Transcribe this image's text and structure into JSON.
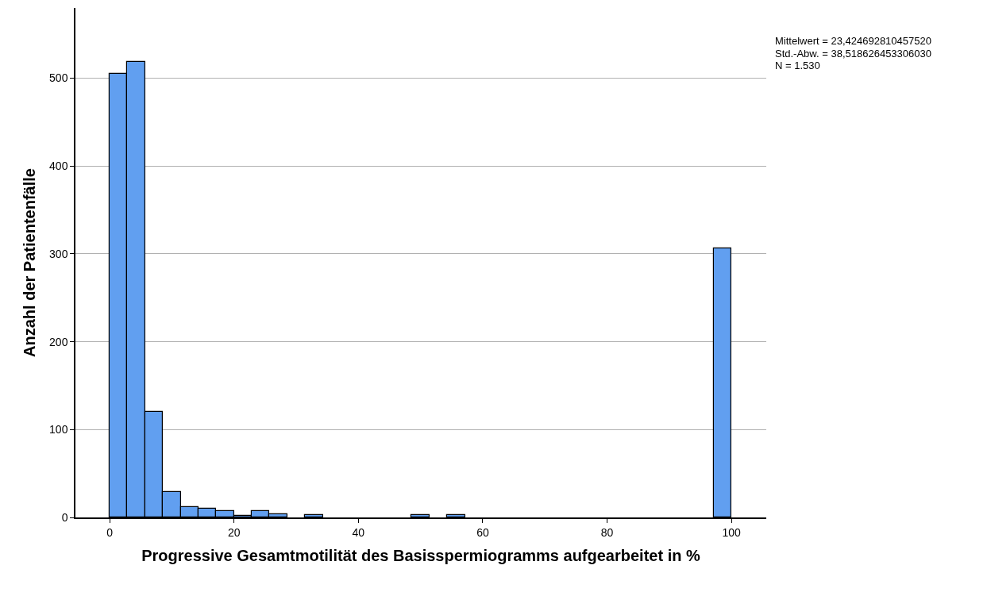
{
  "chart_data": {
    "type": "histogram",
    "xlabel": "Progressive Gesamtmotilität des Basisspermiogramms aufgearbeitet in %",
    "ylabel": "Anzahl der Patientenfälle",
    "bins": [
      0,
      2.86,
      5.71,
      8.57,
      11.43,
      14.29,
      17.14,
      20,
      22.86,
      25.71,
      28.57,
      31.43,
      34.29,
      37.14,
      40,
      42.86,
      45.71,
      48.57,
      51.43,
      54.29,
      57.14,
      60,
      62.86,
      65.71,
      68.57,
      71.43,
      74.29,
      77.14,
      80,
      82.86,
      85.71,
      88.57,
      91.43,
      94.29,
      97.14,
      100
    ],
    "values": [
      505,
      519,
      120,
      29,
      12,
      10,
      7,
      2,
      7,
      4,
      0,
      3,
      0,
      0,
      0,
      0,
      0,
      3,
      0,
      3,
      0,
      0,
      0,
      0,
      0,
      0,
      0,
      0,
      0,
      0,
      0,
      0,
      0,
      0,
      306
    ],
    "color": "#619ff0",
    "xlim": [
      -5.5,
      105.6
    ],
    "xticks": [
      0,
      20,
      40,
      60,
      80,
      100
    ],
    "ylim": [
      0,
      580
    ],
    "yticks": [
      0,
      100,
      200,
      300,
      400,
      500
    ],
    "grid": "y",
    "annotations": [
      "Mittelwert = 23,424692810457520",
      "Std.-Abw. = 38,518626453306030",
      "N = 1.530"
    ]
  }
}
